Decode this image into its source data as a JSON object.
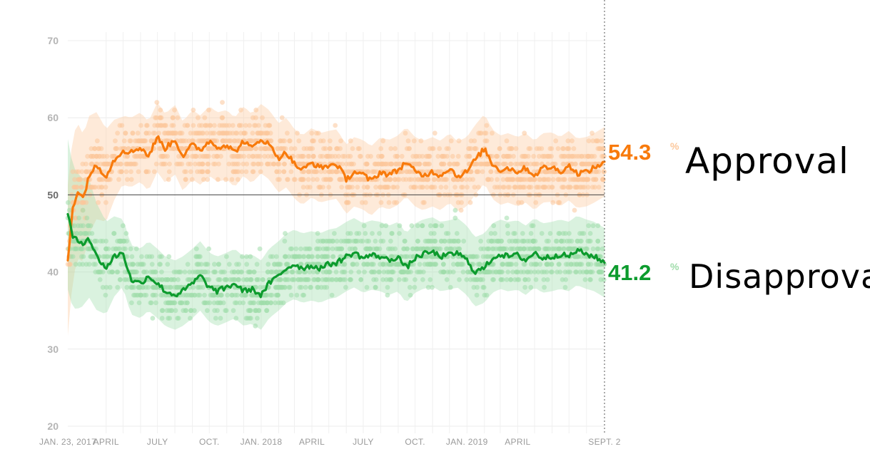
{
  "chart_data": {
    "type": "line",
    "y_ticks": [
      20,
      30,
      40,
      50,
      60,
      70
    ],
    "ylim": [
      20,
      75
    ],
    "reference_line": 50,
    "x_ticks": [
      {
        "label": "JAN. 23, 2017",
        "date": "2017-01-23"
      },
      {
        "label": "APRIL",
        "date": "2017-04-01"
      },
      {
        "label": "JULY",
        "date": "2017-07-01"
      },
      {
        "label": "OCT.",
        "date": "2017-10-01"
      },
      {
        "label": "JAN. 2018",
        "date": "2018-01-01"
      },
      {
        "label": "APRIL",
        "date": "2018-04-01"
      },
      {
        "label": "JULY",
        "date": "2018-07-01"
      },
      {
        "label": "OCT.",
        "date": "2018-10-01"
      },
      {
        "label": "JAN. 2019",
        "date": "2019-01-01"
      },
      {
        "label": "APRIL",
        "date": "2019-04-01"
      },
      {
        "label": "SEPT. 2",
        "date": "2019-09-02"
      }
    ],
    "x_gridlines": [
      "2017-05-01",
      "2017-06-01",
      "2017-08-01",
      "2017-09-01",
      "2017-11-01",
      "2017-12-01",
      "2018-02-01",
      "2018-03-01",
      "2018-05-01",
      "2018-06-01",
      "2018-08-01",
      "2018-09-01",
      "2018-11-01",
      "2018-12-01",
      "2019-02-01",
      "2019-03-01",
      "2019-05-01",
      "2019-06-01",
      "2019-07-01",
      "2019-08-01"
    ],
    "series": [
      {
        "name": "Approval",
        "color": "#f87a0b",
        "light_color": "#fcc79a",
        "end_value": "54.3",
        "end_unit": "%",
        "dates": [
          "2017-01-23",
          "2017-02-01",
          "2017-02-10",
          "2017-02-20",
          "2017-03-01",
          "2017-03-15",
          "2017-04-01",
          "2017-04-15",
          "2017-05-01",
          "2017-05-15",
          "2017-06-01",
          "2017-06-15",
          "2017-07-01",
          "2017-07-15",
          "2017-08-01",
          "2017-08-15",
          "2017-09-01",
          "2017-09-15",
          "2017-10-01",
          "2017-10-15",
          "2017-11-01",
          "2017-11-15",
          "2017-12-01",
          "2017-12-15",
          "2018-01-01",
          "2018-01-15",
          "2018-02-01",
          "2018-02-15",
          "2018-03-01",
          "2018-03-15",
          "2018-04-01",
          "2018-04-15",
          "2018-05-01",
          "2018-05-15",
          "2018-06-01",
          "2018-06-15",
          "2018-07-01",
          "2018-07-15",
          "2018-08-01",
          "2018-08-15",
          "2018-09-01",
          "2018-09-15",
          "2018-10-01",
          "2018-10-15",
          "2018-11-01",
          "2018-11-15",
          "2018-12-01",
          "2018-12-15",
          "2019-01-01",
          "2019-01-15",
          "2019-02-01",
          "2019-02-15",
          "2019-03-01",
          "2019-03-15",
          "2019-04-01",
          "2019-04-15",
          "2019-05-01",
          "2019-05-15",
          "2019-06-01",
          "2019-06-15",
          "2019-07-01",
          "2019-07-15",
          "2019-08-01",
          "2019-08-15",
          "2019-09-02"
        ],
        "values": [
          41.5,
          48.5,
          50.5,
          49.5,
          52.5,
          53.8,
          52.5,
          54.5,
          55.8,
          55.5,
          56.2,
          55.0,
          57.5,
          56.0,
          57.2,
          55.0,
          56.5,
          55.8,
          57.0,
          56.2,
          56.5,
          55.5,
          57.0,
          56.0,
          57.3,
          56.5,
          54.8,
          55.5,
          54.0,
          53.2,
          54.2,
          53.5,
          53.8,
          54.0,
          52.0,
          53.0,
          52.6,
          51.8,
          53.0,
          52.6,
          53.2,
          54.3,
          53.0,
          52.5,
          53.0,
          52.5,
          53.5,
          52.4,
          53.0,
          54.5,
          56.0,
          54.0,
          53.2,
          53.5,
          53.0,
          53.5,
          52.5,
          53.5,
          53.6,
          53.0,
          53.8,
          52.8,
          53.0,
          53.5,
          54.3
        ]
      },
      {
        "name": "Disapproval",
        "color": "#0c9b2d",
        "light_color": "#9fdcaa",
        "end_value": "41.2",
        "end_unit": "%",
        "dates": [
          "2017-01-23",
          "2017-02-01",
          "2017-02-10",
          "2017-02-20",
          "2017-03-01",
          "2017-03-15",
          "2017-04-01",
          "2017-04-15",
          "2017-05-01",
          "2017-05-15",
          "2017-06-01",
          "2017-06-15",
          "2017-07-01",
          "2017-07-15",
          "2017-08-01",
          "2017-08-15",
          "2017-09-01",
          "2017-09-15",
          "2017-10-01",
          "2017-10-15",
          "2017-11-01",
          "2017-11-15",
          "2017-12-01",
          "2017-12-15",
          "2018-01-01",
          "2018-01-15",
          "2018-02-01",
          "2018-02-15",
          "2018-03-01",
          "2018-03-15",
          "2018-04-01",
          "2018-04-15",
          "2018-05-01",
          "2018-05-15",
          "2018-06-01",
          "2018-06-15",
          "2018-07-01",
          "2018-07-15",
          "2018-08-01",
          "2018-08-15",
          "2018-09-01",
          "2018-09-15",
          "2018-10-01",
          "2018-10-15",
          "2018-11-01",
          "2018-11-15",
          "2018-12-01",
          "2018-12-15",
          "2019-01-01",
          "2019-01-15",
          "2019-02-01",
          "2019-02-15",
          "2019-03-01",
          "2019-03-15",
          "2019-04-01",
          "2019-04-15",
          "2019-05-01",
          "2019-05-15",
          "2019-06-01",
          "2019-06-15",
          "2019-07-01",
          "2019-07-15",
          "2019-08-01",
          "2019-08-15",
          "2019-09-02"
        ],
        "values": [
          47.5,
          44.5,
          44.0,
          43.8,
          44.5,
          42.0,
          40.5,
          42.0,
          42.5,
          39.0,
          38.5,
          39.5,
          38.5,
          37.5,
          37.0,
          37.5,
          38.5,
          39.5,
          38.0,
          37.5,
          38.0,
          38.5,
          37.5,
          37.8,
          37.0,
          38.5,
          39.5,
          40.5,
          41.0,
          40.5,
          40.8,
          40.5,
          41.0,
          41.2,
          42.0,
          42.5,
          41.8,
          42.2,
          42.0,
          41.5,
          42.0,
          40.5,
          41.8,
          42.3,
          42.6,
          42.0,
          42.2,
          42.5,
          41.5,
          40.0,
          40.5,
          41.8,
          42.3,
          42.0,
          42.2,
          41.5,
          42.5,
          41.8,
          42.0,
          42.3,
          42.0,
          42.8,
          42.3,
          42.0,
          41.2
        ]
      }
    ]
  }
}
